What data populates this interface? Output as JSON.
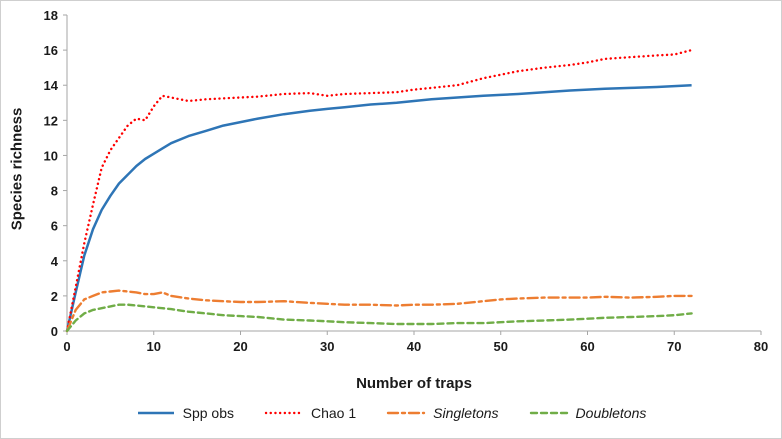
{
  "chart_data": {
    "type": "line",
    "title": "",
    "xlabel": "Number of traps",
    "ylabel": "Species richness",
    "xlim": [
      0,
      80
    ],
    "ylim": [
      0,
      18
    ],
    "xticks": [
      0,
      10,
      20,
      30,
      40,
      50,
      60,
      70,
      80
    ],
    "yticks": [
      0,
      2,
      4,
      6,
      8,
      10,
      12,
      14,
      16,
      18
    ],
    "grid": false,
    "legend_position": "bottom",
    "axis_color": "#a6a6a6",
    "text_color": "#1a1a1a",
    "x": [
      0,
      1,
      2,
      3,
      4,
      5,
      6,
      7,
      8,
      9,
      10,
      11,
      12,
      14,
      16,
      18,
      20,
      22,
      25,
      28,
      30,
      32,
      35,
      38,
      40,
      42,
      45,
      48,
      50,
      52,
      55,
      58,
      60,
      62,
      65,
      68,
      70,
      72
    ],
    "series": [
      {
        "name": "Spp obs",
        "color": "#2E75B6",
        "dash": "solid",
        "italic": false,
        "values": [
          0,
          2.2,
          4.3,
          5.8,
          6.9,
          7.7,
          8.4,
          8.9,
          9.4,
          9.8,
          10.1,
          10.4,
          10.7,
          11.1,
          11.4,
          11.7,
          11.9,
          12.1,
          12.35,
          12.55,
          12.65,
          12.75,
          12.9,
          13.0,
          13.1,
          13.2,
          13.3,
          13.4,
          13.45,
          13.5,
          13.6,
          13.7,
          13.75,
          13.8,
          13.85,
          13.9,
          13.95,
          14.0
        ]
      },
      {
        "name": "Chao 1",
        "color": "#FF0000",
        "dash": "dotted",
        "italic": false,
        "values": [
          0,
          2.5,
          5.0,
          7.2,
          9.3,
          10.3,
          11.0,
          11.7,
          12.1,
          12.0,
          12.8,
          13.4,
          13.3,
          13.1,
          13.2,
          13.25,
          13.3,
          13.35,
          13.5,
          13.55,
          13.4,
          13.5,
          13.55,
          13.6,
          13.75,
          13.85,
          14.0,
          14.4,
          14.6,
          14.8,
          15.0,
          15.15,
          15.3,
          15.5,
          15.6,
          15.7,
          15.75,
          16.0
        ]
      },
      {
        "name": "Singletons",
        "color": "#ED7D31",
        "dash": "dashdot",
        "italic": true,
        "values": [
          0,
          1.2,
          1.8,
          2.0,
          2.2,
          2.25,
          2.3,
          2.25,
          2.2,
          2.1,
          2.1,
          2.2,
          2.0,
          1.85,
          1.75,
          1.7,
          1.65,
          1.65,
          1.7,
          1.6,
          1.55,
          1.5,
          1.5,
          1.45,
          1.5,
          1.5,
          1.55,
          1.7,
          1.8,
          1.85,
          1.9,
          1.9,
          1.9,
          1.95,
          1.9,
          1.95,
          2.0,
          2.0
        ]
      },
      {
        "name": "Doubletons",
        "color": "#70AD47",
        "dash": "dashed",
        "italic": true,
        "values": [
          0,
          0.6,
          1.0,
          1.2,
          1.3,
          1.4,
          1.5,
          1.5,
          1.45,
          1.4,
          1.35,
          1.3,
          1.25,
          1.1,
          1.0,
          0.9,
          0.85,
          0.8,
          0.65,
          0.6,
          0.55,
          0.5,
          0.45,
          0.4,
          0.4,
          0.4,
          0.45,
          0.45,
          0.5,
          0.55,
          0.6,
          0.65,
          0.7,
          0.75,
          0.8,
          0.85,
          0.9,
          1.0
        ]
      }
    ]
  }
}
